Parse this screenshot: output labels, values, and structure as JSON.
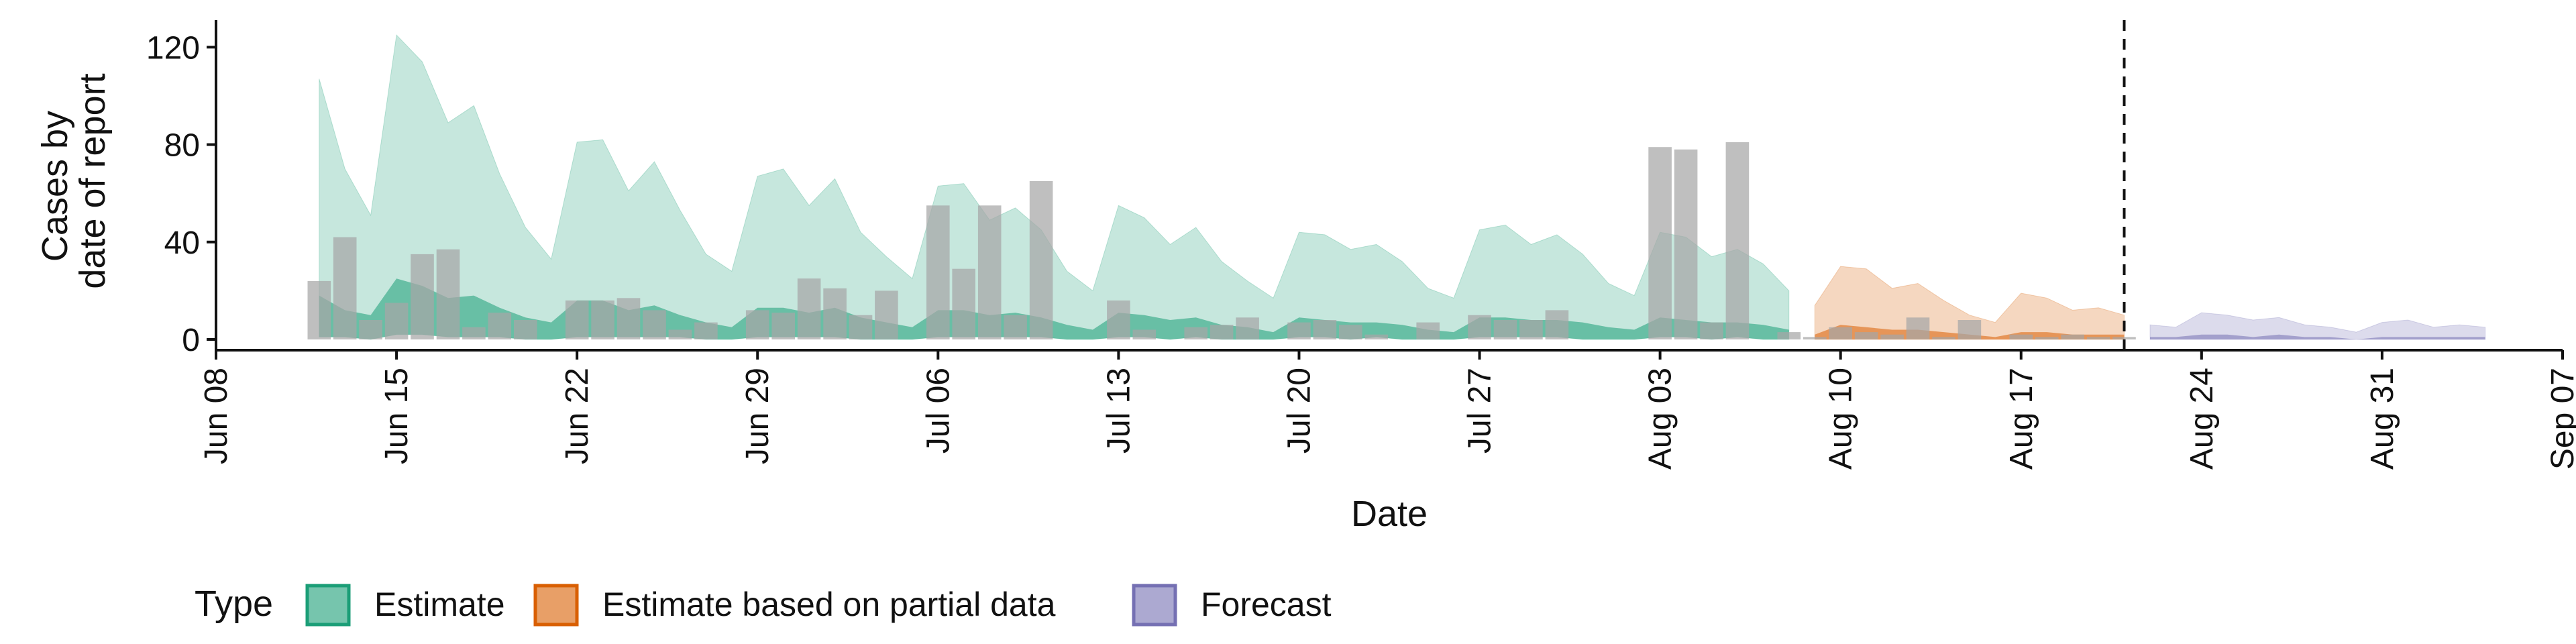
{
  "chart_data": {
    "type": "area",
    "xlabel": "Date",
    "ylabel_lines": [
      "Cases by",
      "date of report"
    ],
    "ylim": [
      0,
      130
    ],
    "yticks": [
      0,
      40,
      80,
      120
    ],
    "xlim": [
      "2020-06-08",
      "2020-09-07"
    ],
    "xticks": [
      {
        "date": "2020-06-08",
        "label": "Jun 08"
      },
      {
        "date": "2020-06-15",
        "label": "Jun 15"
      },
      {
        "date": "2020-06-22",
        "label": "Jun 22"
      },
      {
        "date": "2020-06-29",
        "label": "Jun 29"
      },
      {
        "date": "2020-07-06",
        "label": "Jul 06"
      },
      {
        "date": "2020-07-13",
        "label": "Jul 13"
      },
      {
        "date": "2020-07-20",
        "label": "Jul 20"
      },
      {
        "date": "2020-07-27",
        "label": "Jul 27"
      },
      {
        "date": "2020-08-03",
        "label": "Aug 03"
      },
      {
        "date": "2020-08-10",
        "label": "Aug 10"
      },
      {
        "date": "2020-08-17",
        "label": "Aug 17"
      },
      {
        "date": "2020-08-24",
        "label": "Aug 24"
      },
      {
        "date": "2020-08-31",
        "label": "Aug 31"
      },
      {
        "date": "2020-09-07",
        "label": "Sep 07"
      }
    ],
    "forecast_line_date": "2020-08-21",
    "legend": {
      "title": "Type",
      "position": "bottom",
      "entries": [
        "Estimate",
        "Estimate based on partial data",
        "Forecast"
      ]
    },
    "colors": {
      "Estimate": "#1b9e77",
      "Estimate based on partial data": "#d95f02",
      "Forecast": "#7570b3",
      "observed_bars": "#a6a6a6"
    },
    "series": [
      {
        "type_key": "Estimate",
        "dates": [
          "2020-06-12",
          "2020-06-13",
          "2020-06-14",
          "2020-06-15",
          "2020-06-16",
          "2020-06-17",
          "2020-06-18",
          "2020-06-19",
          "2020-06-20",
          "2020-06-21",
          "2020-06-22",
          "2020-06-23",
          "2020-06-24",
          "2020-06-25",
          "2020-06-26",
          "2020-06-27",
          "2020-06-28",
          "2020-06-29",
          "2020-06-30",
          "2020-07-01",
          "2020-07-02",
          "2020-07-03",
          "2020-07-04",
          "2020-07-05",
          "2020-07-06",
          "2020-07-07",
          "2020-07-08",
          "2020-07-09",
          "2020-07-10",
          "2020-07-11",
          "2020-07-12",
          "2020-07-13",
          "2020-07-14",
          "2020-07-15",
          "2020-07-16",
          "2020-07-17",
          "2020-07-18",
          "2020-07-19",
          "2020-07-20",
          "2020-07-21",
          "2020-07-22",
          "2020-07-23",
          "2020-07-24",
          "2020-07-25",
          "2020-07-26",
          "2020-07-27",
          "2020-07-28",
          "2020-07-29",
          "2020-07-30",
          "2020-07-31",
          "2020-08-01",
          "2020-08-02",
          "2020-08-03",
          "2020-08-04",
          "2020-08-05",
          "2020-08-06",
          "2020-08-07",
          "2020-08-08"
        ],
        "upper90": [
          107,
          70,
          51,
          125,
          114,
          89,
          96,
          68,
          46,
          33,
          81,
          82,
          61,
          73,
          53,
          35,
          28,
          67,
          70,
          55,
          66,
          44,
          34,
          25,
          63,
          64,
          49,
          54,
          45,
          28,
          20,
          55,
          50,
          39,
          46,
          32,
          24,
          17,
          44,
          43,
          37,
          39,
          32,
          21,
          17,
          45,
          47,
          39,
          43,
          35,
          23,
          18,
          44,
          42,
          34,
          37,
          31,
          20
        ],
        "upper50": [
          18,
          12,
          10,
          25,
          22,
          17,
          18,
          13,
          9,
          7,
          16,
          16,
          12,
          14,
          10,
          7,
          5,
          13,
          13,
          11,
          13,
          9,
          7,
          5,
          12,
          12,
          10,
          11,
          9,
          6,
          4,
          11,
          10,
          8,
          9,
          6,
          5,
          3,
          9,
          8,
          7,
          7,
          6,
          4,
          3,
          9,
          9,
          8,
          8,
          7,
          5,
          4,
          9,
          8,
          7,
          7,
          6,
          4
        ],
        "lower": [
          1,
          1,
          0,
          2,
          2,
          1,
          1,
          1,
          0,
          0,
          1,
          1,
          1,
          1,
          1,
          0,
          0,
          1,
          1,
          1,
          1,
          0,
          0,
          0,
          1,
          1,
          1,
          1,
          1,
          0,
          0,
          1,
          1,
          0,
          1,
          0,
          0,
          0,
          1,
          1,
          0,
          1,
          0,
          0,
          0,
          1,
          1,
          1,
          1,
          0,
          0,
          0,
          1,
          1,
          0,
          1,
          0,
          0
        ]
      },
      {
        "type_key": "Estimate based on partial data",
        "dates": [
          "2020-08-09",
          "2020-08-10",
          "2020-08-11",
          "2020-08-12",
          "2020-08-13",
          "2020-08-14",
          "2020-08-15",
          "2020-08-16",
          "2020-08-17",
          "2020-08-18",
          "2020-08-19",
          "2020-08-20",
          "2020-08-21"
        ],
        "upper90": [
          14,
          30,
          29,
          21,
          23,
          16,
          10,
          7,
          19,
          17,
          12,
          13,
          10
        ],
        "upper50": [
          2,
          6,
          5,
          4,
          4,
          3,
          2,
          1,
          3,
          3,
          2,
          2,
          2
        ],
        "lower": [
          0,
          0,
          0,
          0,
          0,
          0,
          0,
          0,
          0,
          0,
          0,
          0,
          0
        ]
      },
      {
        "type_key": "Forecast",
        "dates": [
          "2020-08-22",
          "2020-08-23",
          "2020-08-24",
          "2020-08-25",
          "2020-08-26",
          "2020-08-27",
          "2020-08-28",
          "2020-08-29",
          "2020-08-30",
          "2020-08-31",
          "2020-09-01",
          "2020-09-02",
          "2020-09-03",
          "2020-09-04"
        ],
        "upper90": [
          6,
          5,
          11,
          10,
          8,
          9,
          6,
          5,
          3,
          7,
          8,
          5,
          6,
          5
        ],
        "upper50": [
          1,
          1,
          2,
          2,
          1,
          2,
          1,
          1,
          0,
          1,
          1,
          1,
          1,
          1
        ],
        "lower": [
          0,
          0,
          0,
          0,
          0,
          0,
          0,
          0,
          0,
          0,
          0,
          0,
          0,
          0
        ]
      }
    ],
    "observed_cases": {
      "dates": [
        "2020-06-12",
        "2020-06-13",
        "2020-06-14",
        "2020-06-15",
        "2020-06-16",
        "2020-06-17",
        "2020-06-18",
        "2020-06-19",
        "2020-06-20",
        "2020-06-21",
        "2020-06-22",
        "2020-06-23",
        "2020-06-24",
        "2020-06-25",
        "2020-06-26",
        "2020-06-27",
        "2020-06-28",
        "2020-06-29",
        "2020-06-30",
        "2020-07-01",
        "2020-07-02",
        "2020-07-03",
        "2020-07-04",
        "2020-07-05",
        "2020-07-06",
        "2020-07-07",
        "2020-07-08",
        "2020-07-09",
        "2020-07-10",
        "2020-07-11",
        "2020-07-12",
        "2020-07-13",
        "2020-07-14",
        "2020-07-15",
        "2020-07-16",
        "2020-07-17",
        "2020-07-18",
        "2020-07-19",
        "2020-07-20",
        "2020-07-21",
        "2020-07-22",
        "2020-07-23",
        "2020-07-24",
        "2020-07-25",
        "2020-07-26",
        "2020-07-27",
        "2020-07-28",
        "2020-07-29",
        "2020-07-30",
        "2020-07-31",
        "2020-08-01",
        "2020-08-02",
        "2020-08-03",
        "2020-08-04",
        "2020-08-05",
        "2020-08-06",
        "2020-08-07",
        "2020-08-08",
        "2020-08-09",
        "2020-08-10",
        "2020-08-11",
        "2020-08-12",
        "2020-08-13",
        "2020-08-14",
        "2020-08-15",
        "2020-08-16",
        "2020-08-17",
        "2020-08-18",
        "2020-08-19",
        "2020-08-20",
        "2020-08-21"
      ],
      "values": [
        24,
        42,
        8,
        15,
        35,
        37,
        5,
        11,
        8,
        0,
        16,
        16,
        17,
        12,
        4,
        7,
        0,
        12,
        11,
        25,
        21,
        10,
        20,
        0,
        55,
        29,
        55,
        10,
        65,
        0,
        0,
        16,
        4,
        0,
        5,
        6,
        9,
        0,
        7,
        8,
        6,
        2,
        0,
        7,
        0,
        10,
        8,
        8,
        12,
        0,
        0,
        0,
        79,
        78,
        7,
        81,
        0,
        3,
        1,
        5,
        3,
        2,
        9,
        1,
        8,
        0,
        2,
        1,
        2,
        1,
        1
      ]
    }
  }
}
